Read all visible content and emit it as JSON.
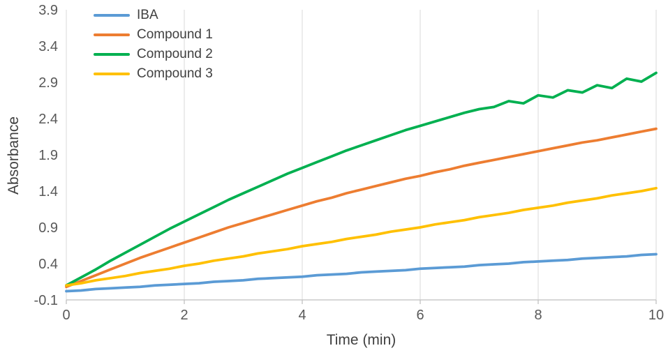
{
  "chart_data": {
    "type": "line",
    "title": "",
    "xlabel": "Time (min)",
    "ylabel": "Absorbance",
    "xlim": [
      0,
      10
    ],
    "ylim": [
      -0.1,
      3.9
    ],
    "x_ticks": [
      0,
      2,
      4,
      6,
      8,
      10
    ],
    "y_ticks": [
      -0.1,
      0.4,
      0.9,
      1.4,
      1.9,
      2.4,
      2.9,
      3.4,
      3.9
    ],
    "grid": "vertical-major",
    "legend_position": "top-left-inside",
    "x": [
      0,
      0.25,
      0.5,
      0.75,
      1,
      1.25,
      1.5,
      1.75,
      2,
      2.25,
      2.5,
      2.75,
      3,
      3.25,
      3.5,
      3.75,
      4,
      4.25,
      4.5,
      4.75,
      5,
      5.25,
      5.5,
      5.75,
      6,
      6.25,
      6.5,
      6.75,
      7,
      7.25,
      7.5,
      7.75,
      8,
      8.25,
      8.5,
      8.75,
      9,
      9.25,
      9.5,
      9.75,
      10
    ],
    "series": [
      {
        "name": "IBA",
        "color": "#5B9BD5",
        "values": [
          0.02,
          0.03,
          0.05,
          0.06,
          0.07,
          0.08,
          0.1,
          0.11,
          0.12,
          0.13,
          0.15,
          0.16,
          0.17,
          0.19,
          0.2,
          0.21,
          0.22,
          0.24,
          0.25,
          0.26,
          0.28,
          0.29,
          0.3,
          0.31,
          0.33,
          0.34,
          0.35,
          0.36,
          0.38,
          0.39,
          0.4,
          0.42,
          0.43,
          0.44,
          0.45,
          0.47,
          0.48,
          0.49,
          0.5,
          0.52,
          0.53
        ]
      },
      {
        "name": "Compound 1",
        "color": "#ED7D31",
        "values": [
          0.08,
          0.16,
          0.24,
          0.32,
          0.4,
          0.48,
          0.55,
          0.62,
          0.69,
          0.76,
          0.83,
          0.9,
          0.96,
          1.02,
          1.08,
          1.14,
          1.2,
          1.26,
          1.31,
          1.37,
          1.42,
          1.47,
          1.52,
          1.57,
          1.61,
          1.66,
          1.7,
          1.75,
          1.79,
          1.83,
          1.87,
          1.91,
          1.95,
          1.99,
          2.03,
          2.07,
          2.1,
          2.14,
          2.18,
          2.22,
          2.26
        ]
      },
      {
        "name": "Compound 2",
        "color": "#00B050",
        "values": [
          0.1,
          0.21,
          0.32,
          0.44,
          0.55,
          0.66,
          0.77,
          0.88,
          0.98,
          1.08,
          1.18,
          1.28,
          1.37,
          1.46,
          1.55,
          1.64,
          1.72,
          1.8,
          1.88,
          1.96,
          2.03,
          2.1,
          2.17,
          2.24,
          2.3,
          2.36,
          2.42,
          2.48,
          2.53,
          2.56,
          2.64,
          2.61,
          2.72,
          2.69,
          2.79,
          2.76,
          2.86,
          2.82,
          2.95,
          2.91,
          3.03
        ]
      },
      {
        "name": "Compound 3",
        "color": "#FFC000",
        "values": [
          0.1,
          0.13,
          0.17,
          0.2,
          0.23,
          0.27,
          0.3,
          0.33,
          0.37,
          0.4,
          0.44,
          0.47,
          0.5,
          0.54,
          0.57,
          0.6,
          0.64,
          0.67,
          0.7,
          0.74,
          0.77,
          0.8,
          0.84,
          0.87,
          0.9,
          0.94,
          0.97,
          1.0,
          1.04,
          1.07,
          1.1,
          1.14,
          1.17,
          1.2,
          1.24,
          1.27,
          1.3,
          1.34,
          1.37,
          1.4,
          1.44
        ]
      }
    ]
  },
  "style": {
    "axis_text_color": "#595959",
    "title_text_color": "#404040",
    "gridline_color": "#D9D9D9",
    "axis_line_color": "#BFBFBF",
    "background": "#FFFFFF"
  }
}
